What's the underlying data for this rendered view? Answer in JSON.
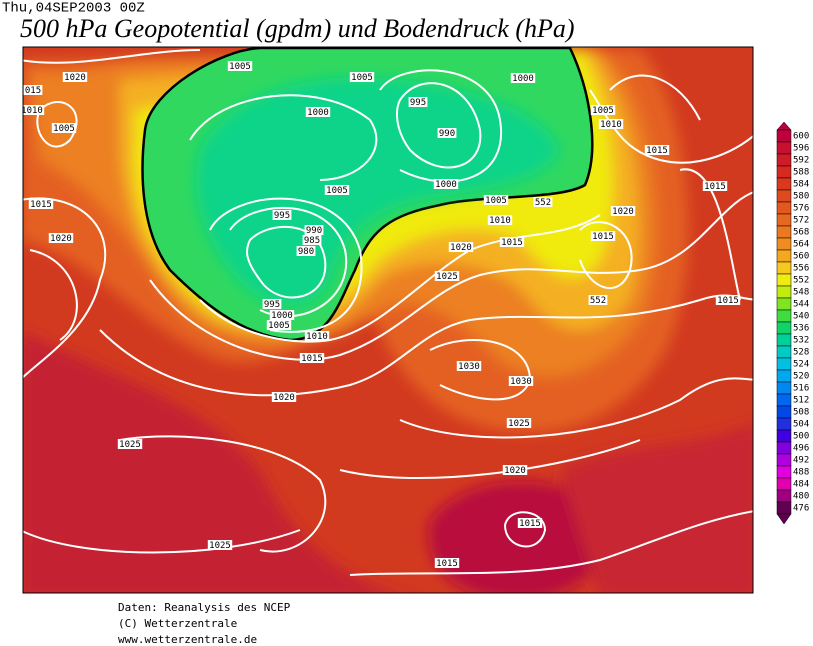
{
  "header": {
    "date": "Thu,04SEP2003 00Z",
    "title": "500 hPa Geopotential (gpdm) und Bodendruck (hPa)"
  },
  "legend": {
    "labels": [
      600,
      596,
      592,
      588,
      584,
      580,
      576,
      572,
      568,
      564,
      560,
      556,
      552,
      548,
      544,
      540,
      536,
      532,
      528,
      524,
      520,
      516,
      512,
      508,
      504,
      500,
      496,
      492,
      488,
      484,
      480,
      476
    ],
    "colors": [
      "#c0003c",
      "#c81030",
      "#d01c28",
      "#d82820",
      "#dc3820",
      "#e04820",
      "#e45820",
      "#e86820",
      "#ec7820",
      "#f08c20",
      "#f4a820",
      "#f8c820",
      "#f0ec10",
      "#c0ec10",
      "#80e420",
      "#40dc40",
      "#10d468",
      "#00d098",
      "#00ccc4",
      "#00c0e4",
      "#00a8f0",
      "#0088f0",
      "#0068f0",
      "#0048e8",
      "#2030e0",
      "#4000e0",
      "#8000e0",
      "#b000e0",
      "#e000e0",
      "#e000b0",
      "#a00080",
      "#600050"
    ]
  },
  "isobar_labels": [
    "1020",
    "1005",
    "1005",
    "1000",
    "1010",
    "1005",
    "995",
    "990",
    "1000",
    "1005",
    "1010",
    "1015",
    "1015",
    "1005",
    "1000",
    "1005",
    "1010",
    "1015",
    "1020",
    "1015",
    "1015",
    "1020",
    "995",
    "990",
    "985",
    "980",
    "1020",
    "1025",
    "995",
    "1000",
    "1005",
    "1010",
    "1015",
    "1015",
    "1030",
    "1030",
    "1020",
    "1025",
    "1025",
    "1020",
    "1015",
    "1025",
    "1015",
    "015",
    "552",
    "552"
  ],
  "footer": [
    "Daten: Reanalysis des NCEP",
    "(C) Wetterzentrale",
    "www.wetterzentrale.de"
  ]
}
